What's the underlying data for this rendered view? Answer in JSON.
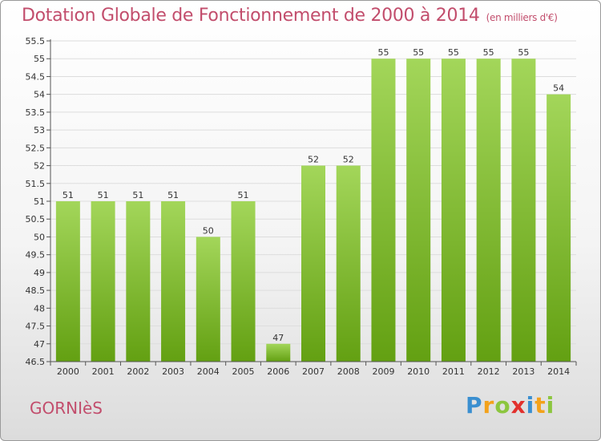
{
  "title": "Dotation Globale de Fonctionnement de 2000 à 2014",
  "unit": "(en milliers d'€)",
  "commune": "GORNIèS",
  "logo": {
    "letters": [
      "P",
      "r",
      "o",
      "x",
      "i",
      "t",
      "i"
    ],
    "colors": [
      "#3a8fd0",
      "#f3a21b",
      "#8cc63f",
      "#e2312d",
      "#3a8fd0",
      "#f3a21b",
      "#8cc63f"
    ]
  },
  "colors": {
    "bar_light": "#a3d65a",
    "bar_dark": "#63a012",
    "accent": "#c24d6c"
  },
  "chart_data": {
    "type": "bar",
    "categories": [
      "2000",
      "2001",
      "2002",
      "2003",
      "2004",
      "2005",
      "2006",
      "2007",
      "2008",
      "2009",
      "2010",
      "2011",
      "2012",
      "2013",
      "2014"
    ],
    "values": [
      51,
      51,
      51,
      51,
      50,
      51,
      47,
      52,
      52,
      55,
      55,
      55,
      55,
      55,
      54
    ],
    "value_labels": [
      "51",
      "51",
      "51",
      "51",
      "50",
      "51",
      "47",
      "52",
      "52",
      "55",
      "55",
      "55",
      "55",
      "55",
      "54"
    ],
    "ylim": [
      46.5,
      55.5
    ],
    "yticks": [
      46.5,
      47,
      47.5,
      48,
      48.5,
      49,
      49.5,
      50,
      50.5,
      51,
      51.5,
      52,
      52.5,
      53,
      53.5,
      54,
      54.5,
      55,
      55.5
    ],
    "ytick_labels": [
      "46.5",
      "47",
      "47.5",
      "48",
      "48.5",
      "49",
      "49.5",
      "50",
      "50.5",
      "51",
      "51.5",
      "52",
      "52.5",
      "53",
      "53.5",
      "54",
      "54.5",
      "55",
      "55.5"
    ],
    "grid": true,
    "xlabel": "",
    "ylabel": ""
  }
}
